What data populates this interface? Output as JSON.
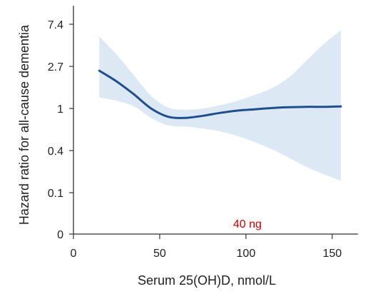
{
  "chart_data": {
    "type": "line",
    "title": "",
    "xlabel": "Serum 25(OH)D, nmol/L",
    "ylabel": "Hazard ratio for all-cause dementia",
    "xlim": [
      0,
      160
    ],
    "xticks": [
      0,
      50,
      100,
      150
    ],
    "x_tick_labels": [
      "0",
      "50",
      "100",
      "150"
    ],
    "y_scale": "log",
    "y_tick_labels": [
      "0",
      "0.1",
      "0.4",
      "1",
      "2.7",
      "7.4"
    ],
    "grid": false,
    "legend": "none",
    "annotation": "40 ng",
    "annotation_x": 100,
    "series": [
      {
        "x": [
          15,
          25,
          35,
          45,
          55,
          65,
          75,
          85,
          95,
          105,
          115,
          125,
          135,
          145,
          155
        ],
        "y": [
          2.45,
          1.9,
          1.4,
          1.0,
          0.82,
          0.8,
          0.84,
          0.9,
          0.95,
          0.98,
          1.01,
          1.03,
          1.04,
          1.04,
          1.05
        ],
        "ci_upper": [
          5.5,
          3.6,
          2.2,
          1.35,
          1.02,
          0.97,
          1.0,
          1.08,
          1.2,
          1.38,
          1.62,
          2.1,
          3.1,
          4.6,
          6.4
        ],
        "ci_lower": [
          1.3,
          1.2,
          1.05,
          0.8,
          0.67,
          0.65,
          0.62,
          0.58,
          0.52,
          0.45,
          0.38,
          0.31,
          0.25,
          0.21,
          0.18
        ]
      }
    ],
    "colors": {
      "line": "#1f4e8c",
      "band": "#dce9f5",
      "axis": "#333333",
      "annotation": "#cc0000"
    }
  }
}
